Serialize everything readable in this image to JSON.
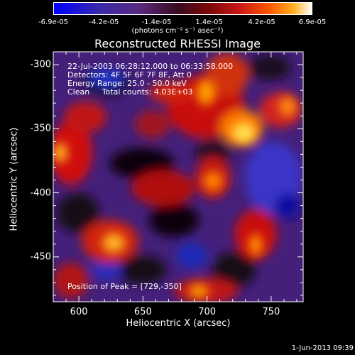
{
  "colorbar": {
    "ticks": [
      "-6.9e-05",
      "-4.2e-05",
      "-1.4e-05",
      "1.4e-05",
      "4.2e-05",
      "6.9e-05"
    ],
    "unit": "(photons cm⁻² s⁻¹ asec⁻²)"
  },
  "annotations": {
    "line1": "22-Jul-2003 06:28:12.000 to 06:33:58.000",
    "line2": "Detectors: 4F 5F 6F 7F 8F, Att 0",
    "line3": "Energy Range: 25.0 - 50.0 keV",
    "line4": "Clean     Total counts: 4.03E+03",
    "peak": "Position of Peak = [729,-350]"
  },
  "timestamp": "1-Jun-2013 09:39",
  "chart_data": {
    "type": "heatmap",
    "title": "Reconstructed RHESSI Image",
    "xlabel": "Heliocentric X (arcsec)",
    "ylabel": "Heliocentric Y (arcsec)",
    "xlim": [
      580,
      775
    ],
    "ylim": [
      -485,
      -290
    ],
    "xticks": [
      600,
      650,
      700,
      750
    ],
    "yticks": [
      -300,
      -350,
      -400,
      -450
    ],
    "colorbar_range": [
      -6.9e-05,
      6.9e-05
    ],
    "peak": [
      729,
      -350
    ]
  }
}
